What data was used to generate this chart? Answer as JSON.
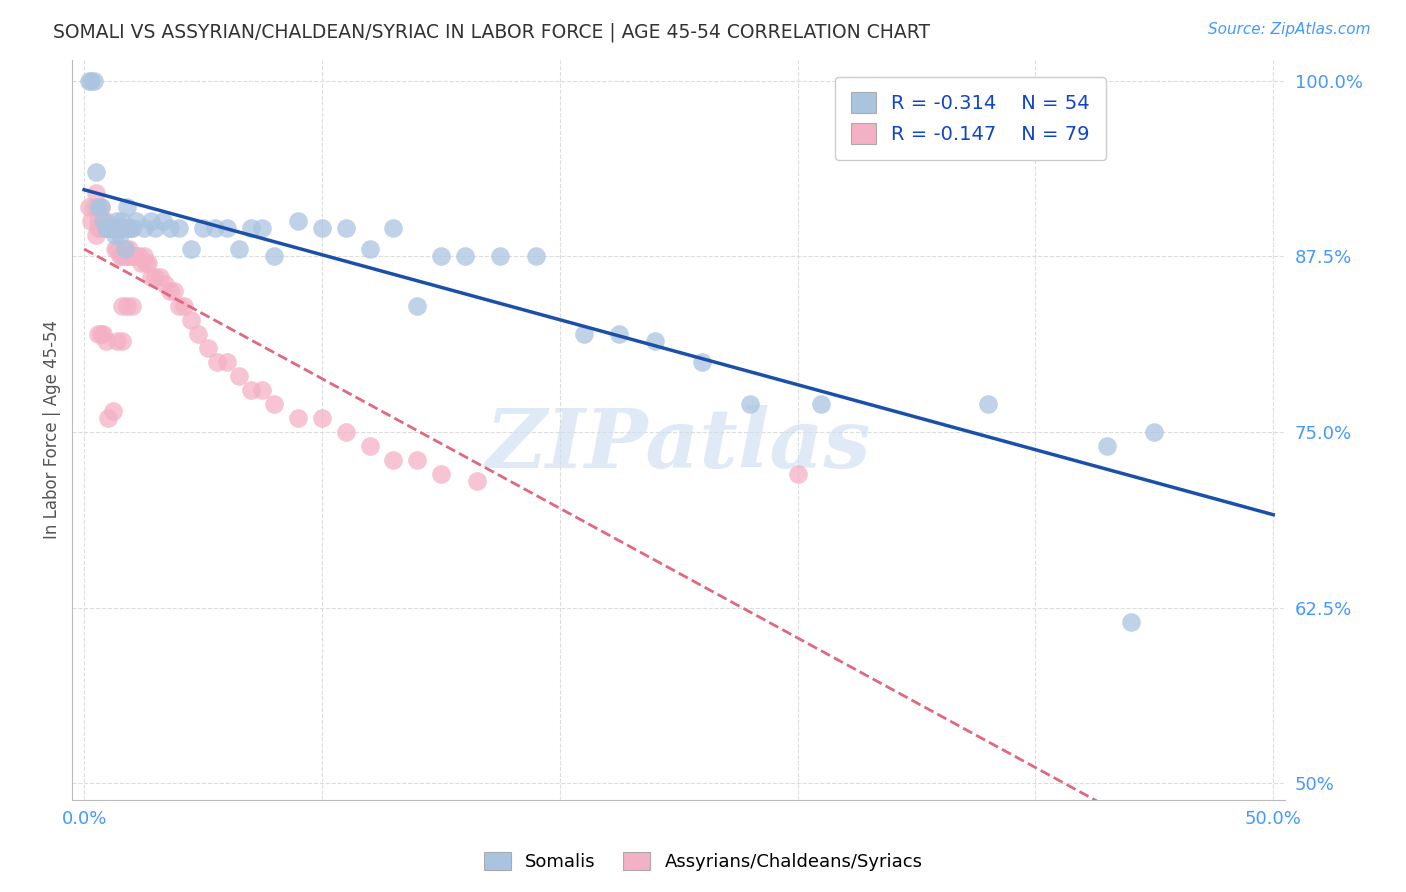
{
  "title": "SOMALI VS ASSYRIAN/CHALDEAN/SYRIAC IN LABOR FORCE | AGE 45-54 CORRELATION CHART",
  "source": "Source: ZipAtlas.com",
  "ylabel": "In Labor Force | Age 45-54",
  "xlim": [
    -0.005,
    0.505
  ],
  "ylim": [
    0.488,
    1.015
  ],
  "xtick_positions": [
    0.0,
    0.1,
    0.2,
    0.3,
    0.4,
    0.5
  ],
  "xticklabels": [
    "0.0%",
    "",
    "",
    "",
    "",
    "50.0%"
  ],
  "ytick_positions": [
    0.5,
    0.625,
    0.75,
    0.875,
    1.0
  ],
  "yticklabels": [
    "50%",
    "62.5%",
    "75.0%",
    "87.5%",
    "100.0%"
  ],
  "blue_R": "-0.314",
  "blue_N": "54",
  "pink_R": "-0.147",
  "pink_N": "79",
  "blue_color": "#aac4e0",
  "pink_color": "#f4b0c4",
  "blue_line_color": "#1a4faa",
  "pink_line_color": "#e06880",
  "tick_color": "#4499ff",
  "legend_r_color": "#1144cc",
  "watermark": "ZIPatlas",
  "blue_x": [
    0.002,
    0.003,
    0.004,
    0.005,
    0.006,
    0.007,
    0.008,
    0.009,
    0.01,
    0.011,
    0.012,
    0.013,
    0.014,
    0.015,
    0.016,
    0.017,
    0.018,
    0.019,
    0.02,
    0.022,
    0.025,
    0.028,
    0.03,
    0.033,
    0.036,
    0.04,
    0.045,
    0.05,
    0.055,
    0.06,
    0.065,
    0.07,
    0.075,
    0.08,
    0.09,
    0.1,
    0.11,
    0.12,
    0.13,
    0.14,
    0.15,
    0.16,
    0.175,
    0.19,
    0.21,
    0.225,
    0.24,
    0.26,
    0.28,
    0.31,
    0.38,
    0.43,
    0.44,
    0.45
  ],
  "blue_y": [
    1.0,
    1.0,
    1.0,
    0.935,
    0.91,
    0.91,
    0.9,
    0.895,
    0.895,
    0.895,
    0.895,
    0.89,
    0.9,
    0.89,
    0.9,
    0.88,
    0.91,
    0.895,
    0.895,
    0.9,
    0.895,
    0.9,
    0.895,
    0.9,
    0.895,
    0.895,
    0.88,
    0.895,
    0.895,
    0.895,
    0.88,
    0.895,
    0.895,
    0.875,
    0.9,
    0.895,
    0.895,
    0.88,
    0.895,
    0.84,
    0.875,
    0.875,
    0.875,
    0.875,
    0.82,
    0.82,
    0.815,
    0.8,
    0.77,
    0.77,
    0.77,
    0.74,
    0.615,
    0.75
  ],
  "pink_x": [
    0.002,
    0.003,
    0.004,
    0.005,
    0.005,
    0.006,
    0.006,
    0.007,
    0.007,
    0.008,
    0.008,
    0.009,
    0.009,
    0.01,
    0.01,
    0.011,
    0.011,
    0.012,
    0.012,
    0.013,
    0.013,
    0.014,
    0.014,
    0.015,
    0.015,
    0.016,
    0.016,
    0.017,
    0.017,
    0.018,
    0.018,
    0.019,
    0.019,
    0.02,
    0.02,
    0.021,
    0.022,
    0.023,
    0.024,
    0.025,
    0.026,
    0.027,
    0.028,
    0.03,
    0.032,
    0.034,
    0.036,
    0.038,
    0.04,
    0.042,
    0.045,
    0.048,
    0.052,
    0.056,
    0.06,
    0.065,
    0.07,
    0.075,
    0.08,
    0.09,
    0.1,
    0.11,
    0.12,
    0.13,
    0.14,
    0.15,
    0.165,
    0.016,
    0.018,
    0.02,
    0.01,
    0.012,
    0.008,
    0.006,
    0.007,
    0.009,
    0.014,
    0.016,
    0.3
  ],
  "pink_y": [
    0.91,
    0.9,
    0.91,
    0.89,
    0.92,
    0.9,
    0.895,
    0.91,
    0.895,
    0.9,
    0.895,
    0.895,
    0.9,
    0.895,
    0.895,
    0.895,
    0.895,
    0.895,
    0.895,
    0.895,
    0.88,
    0.895,
    0.88,
    0.895,
    0.875,
    0.895,
    0.875,
    0.88,
    0.875,
    0.895,
    0.875,
    0.88,
    0.875,
    0.895,
    0.875,
    0.875,
    0.875,
    0.875,
    0.87,
    0.875,
    0.87,
    0.87,
    0.86,
    0.86,
    0.86,
    0.855,
    0.85,
    0.85,
    0.84,
    0.84,
    0.83,
    0.82,
    0.81,
    0.8,
    0.8,
    0.79,
    0.78,
    0.78,
    0.77,
    0.76,
    0.76,
    0.75,
    0.74,
    0.73,
    0.73,
    0.72,
    0.715,
    0.84,
    0.84,
    0.84,
    0.76,
    0.765,
    0.82,
    0.82,
    0.82,
    0.815,
    0.815,
    0.815,
    0.72
  ]
}
